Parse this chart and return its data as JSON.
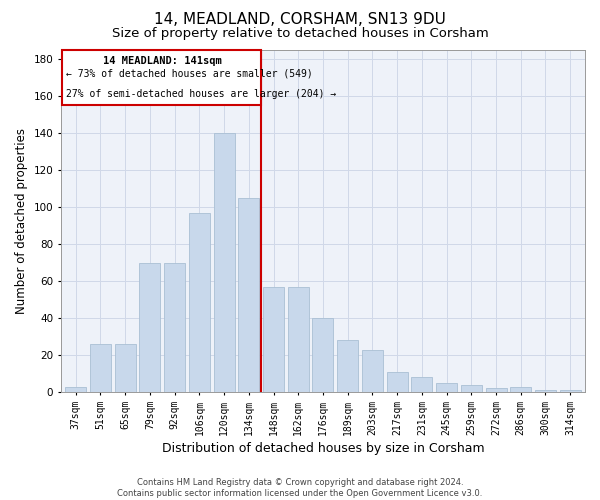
{
  "title": "14, MEADLAND, CORSHAM, SN13 9DU",
  "subtitle": "Size of property relative to detached houses in Corsham",
  "xlabel": "Distribution of detached houses by size in Corsham",
  "ylabel": "Number of detached properties",
  "footer_line1": "Contains HM Land Registry data © Crown copyright and database right 2024.",
  "footer_line2": "Contains public sector information licensed under the Open Government Licence v3.0.",
  "bar_color": "#c8d8eb",
  "bar_edge_color": "#aabfd4",
  "grid_color": "#d0d8e8",
  "annotation_box_color": "#cc0000",
  "vline_color": "#cc0000",
  "annotation_title": "14 MEADLAND: 141sqm",
  "annotation_line2": "← 73% of detached houses are smaller (549)",
  "annotation_line3": "27% of semi-detached houses are larger (204) →",
  "categories": [
    "37sqm",
    "51sqm",
    "65sqm",
    "79sqm",
    "92sqm",
    "106sqm",
    "120sqm",
    "134sqm",
    "148sqm",
    "162sqm",
    "176sqm",
    "189sqm",
    "203sqm",
    "217sqm",
    "231sqm",
    "245sqm",
    "259sqm",
    "272sqm",
    "286sqm",
    "300sqm",
    "314sqm"
  ],
  "values": [
    3,
    26,
    26,
    70,
    70,
    97,
    140,
    105,
    57,
    57,
    40,
    28,
    23,
    11,
    8,
    5,
    4,
    2,
    3,
    1,
    1
  ],
  "ylim": [
    0,
    185
  ],
  "yticks": [
    0,
    20,
    40,
    60,
    80,
    100,
    120,
    140,
    160,
    180
  ],
  "background_color": "#eef2f9",
  "title_fontsize": 11,
  "subtitle_fontsize": 9.5,
  "tick_fontsize": 7,
  "ylabel_fontsize": 8.5,
  "xlabel_fontsize": 9,
  "footer_fontsize": 6
}
